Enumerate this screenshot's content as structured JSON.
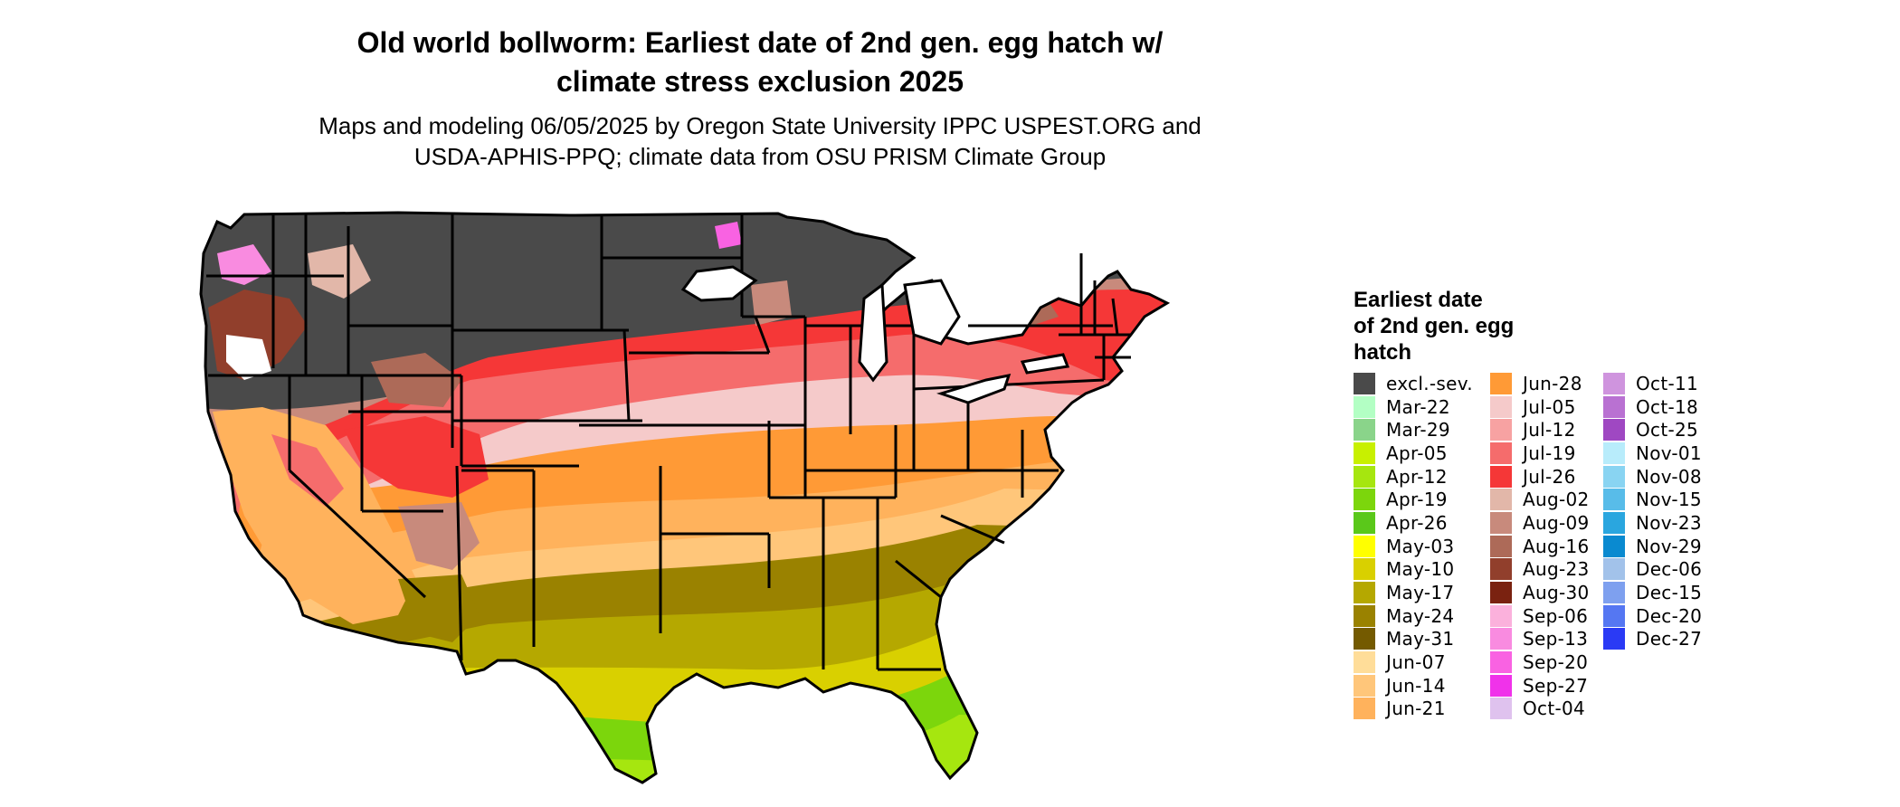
{
  "title_line1": "Old world bollworm: Earliest date of 2nd gen. egg hatch w/",
  "title_line2": "climate stress exclusion 2025",
  "subtitle_line1": "Maps and modeling 06/05/2025 by Oregon State University IPPC USPEST.ORG and",
  "subtitle_line2": "USDA-APHIS-PPQ; climate data from OSU PRISM Climate Group",
  "legend": {
    "title_line1": "Earliest date",
    "title_line2": "of 2nd gen. egg",
    "title_line3": "hatch",
    "columns": [
      [
        {
          "label": "excl.-sev.",
          "color": "#4a4a4a"
        },
        {
          "label": "Mar-22",
          "color": "#b3ffc4"
        },
        {
          "label": "Mar-29",
          "color": "#8ad48a"
        },
        {
          "label": "Apr-05",
          "color": "#c8f000"
        },
        {
          "label": "Apr-12",
          "color": "#a6e60f"
        },
        {
          "label": "Apr-19",
          "color": "#7cd60c"
        },
        {
          "label": "Apr-26",
          "color": "#5ac81a"
        },
        {
          "label": "May-03",
          "color": "#ffff00"
        },
        {
          "label": "May-10",
          "color": "#d9d000"
        },
        {
          "label": "May-17",
          "color": "#b5a800"
        },
        {
          "label": "May-24",
          "color": "#9a8200"
        },
        {
          "label": "May-31",
          "color": "#745a00"
        },
        {
          "label": "Jun-07",
          "color": "#ffdd99"
        },
        {
          "label": "Jun-14",
          "color": "#ffc67a"
        },
        {
          "label": "Jun-21",
          "color": "#ffb25c"
        }
      ],
      [
        {
          "label": "Jun-28",
          "color": "#ff9a36"
        },
        {
          "label": "Jul-05",
          "color": "#f5caca"
        },
        {
          "label": "Jul-12",
          "color": "#f7a2a2"
        },
        {
          "label": "Jul-19",
          "color": "#f56c6c"
        },
        {
          "label": "Jul-26",
          "color": "#f53737"
        },
        {
          "label": "Aug-02",
          "color": "#e2b7a9"
        },
        {
          "label": "Aug-09",
          "color": "#c88a7c"
        },
        {
          "label": "Aug-16",
          "color": "#ad6a58"
        },
        {
          "label": "Aug-23",
          "color": "#913f2c"
        },
        {
          "label": "Aug-30",
          "color": "#7a2210"
        },
        {
          "label": "Sep-06",
          "color": "#fbb1dc"
        },
        {
          "label": "Sep-13",
          "color": "#f98be0"
        },
        {
          "label": "Sep-20",
          "color": "#f962e2"
        },
        {
          "label": "Sep-27",
          "color": "#f032ea"
        },
        {
          "label": "Oct-04",
          "color": "#dfc2ee"
        }
      ],
      [
        {
          "label": "Oct-11",
          "color": "#cf94de"
        },
        {
          "label": "Oct-18",
          "color": "#b971d2"
        },
        {
          "label": "Oct-25",
          "color": "#9f48c2"
        },
        {
          "label": "Nov-01",
          "color": "#b8ecfb"
        },
        {
          "label": "Nov-08",
          "color": "#89d4f2"
        },
        {
          "label": "Nov-15",
          "color": "#58bce9"
        },
        {
          "label": "Nov-23",
          "color": "#2aa6df"
        },
        {
          "label": "Nov-29",
          "color": "#0a8ad0"
        },
        {
          "label": "Dec-06",
          "color": "#a2c2ea"
        },
        {
          "label": "Dec-15",
          "color": "#7ea0ef"
        },
        {
          "label": "Dec-20",
          "color": "#5577f2"
        },
        {
          "label": "Dec-27",
          "color": "#2a3af5"
        }
      ]
    ]
  },
  "map": {
    "colors": {
      "excluded": "#4a4a4a",
      "border": "#000000",
      "background": "#ffffff"
    }
  }
}
